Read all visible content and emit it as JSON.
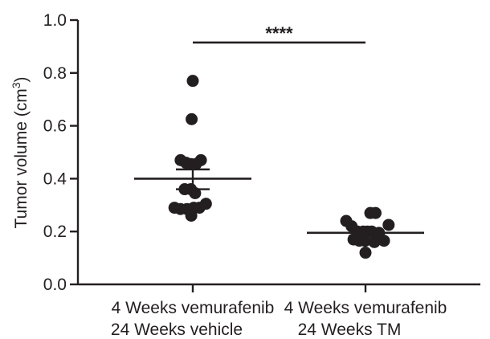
{
  "chart_data": {
    "type": "scatter",
    "ylabel": {
      "prefix": "Tumor volume (cm",
      "sup": "3",
      "suffix": ")"
    },
    "ylim": [
      0,
      1.0
    ],
    "yticks": [
      0.0,
      0.2,
      0.4,
      0.6,
      0.8,
      1.0
    ],
    "ytick_labels": [
      "0.0",
      "0.2",
      "0.4",
      "0.6",
      "0.8",
      "1.0"
    ],
    "categories": [
      {
        "line1": "4 Weeks vemurafenib",
        "line2": "24 Weeks vehicle"
      },
      {
        "line1": "4 Weeks vemurafenib",
        "line2": "24 Weeks TM"
      }
    ],
    "groups": [
      {
        "mean": 0.4,
        "sem": [
          0.36,
          0.435
        ],
        "points": [
          {
            "o": 0,
            "y": 0.77
          },
          {
            "o": -0.06,
            "y": 0.625
          },
          {
            "o": -0.63,
            "y": 0.47
          },
          {
            "o": -0.35,
            "y": 0.46
          },
          {
            "o": -0.1,
            "y": 0.455
          },
          {
            "o": 0.16,
            "y": 0.455
          },
          {
            "o": 0.42,
            "y": 0.47
          },
          {
            "o": -0.42,
            "y": 0.36
          },
          {
            "o": -0.1,
            "y": 0.36
          },
          {
            "o": 0.12,
            "y": 0.345
          },
          {
            "o": -0.95,
            "y": 0.29
          },
          {
            "o": -0.64,
            "y": 0.285
          },
          {
            "o": -0.3,
            "y": 0.285
          },
          {
            "o": 0.05,
            "y": 0.29
          },
          {
            "o": 0.34,
            "y": 0.29
          },
          {
            "o": 0.68,
            "y": 0.305
          },
          {
            "o": -0.08,
            "y": 0.26
          }
        ]
      },
      {
        "mean": 0.195,
        "sem": [
          0.183,
          0.208
        ],
        "points": [
          {
            "o": -1.0,
            "y": 0.24
          },
          {
            "o": -0.72,
            "y": 0.22
          },
          {
            "o": 0.25,
            "y": 0.27
          },
          {
            "o": 0.52,
            "y": 0.27
          },
          {
            "o": -0.42,
            "y": 0.2
          },
          {
            "o": -0.12,
            "y": 0.2
          },
          {
            "o": 0.1,
            "y": 0.2
          },
          {
            "o": 0.32,
            "y": 0.2
          },
          {
            "o": 0.7,
            "y": 0.195
          },
          {
            "o": 1.2,
            "y": 0.225
          },
          {
            "o": -0.62,
            "y": 0.17
          },
          {
            "o": -0.32,
            "y": 0.165
          },
          {
            "o": -0.02,
            "y": 0.165
          },
          {
            "o": 0.46,
            "y": 0.16
          },
          {
            "o": 0.96,
            "y": 0.165
          },
          {
            "o": 0.0,
            "y": 0.12
          }
        ]
      }
    ],
    "significance": {
      "label": "****",
      "y": 0.915
    }
  }
}
